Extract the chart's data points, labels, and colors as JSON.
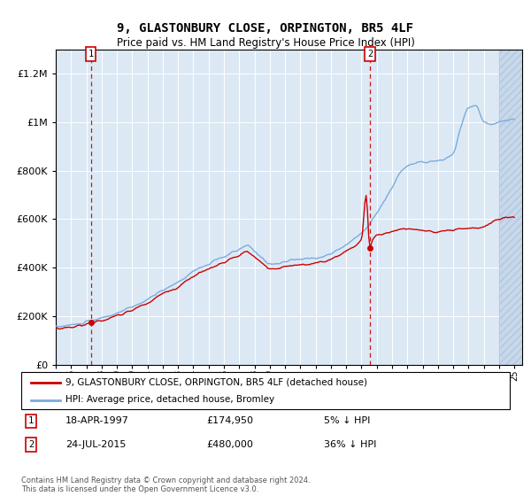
{
  "title": "9, GLASTONBURY CLOSE, ORPINGTON, BR5 4LF",
  "subtitle": "Price paid vs. HM Land Registry's House Price Index (HPI)",
  "ylim": [
    0,
    1300000
  ],
  "yticks": [
    0,
    200000,
    400000,
    600000,
    800000,
    1000000,
    1200000
  ],
  "background_color": "#dce9f5",
  "sale1_x": 1997.3,
  "sale1_y": 174950,
  "sale2_x": 2015.55,
  "sale2_y": 480000,
  "legend_entries": [
    "9, GLASTONBURY CLOSE, ORPINGTON, BR5 4LF (detached house)",
    "HPI: Average price, detached house, Bromley"
  ],
  "footer": "Contains HM Land Registry data © Crown copyright and database right 2024.\nThis data is licensed under the Open Government Licence v3.0.",
  "line_red_color": "#cc0000",
  "line_blue_color": "#7aacdb",
  "xmin": 1995.0,
  "xmax": 2025.5,
  "hatch_start": 2024.0,
  "ann1_date": "18-APR-1997",
  "ann1_price": "£174,950",
  "ann1_hpi": "5% ↓ HPI",
  "ann2_date": "24-JUL-2015",
  "ann2_price": "£480,000",
  "ann2_hpi": "36% ↓ HPI"
}
